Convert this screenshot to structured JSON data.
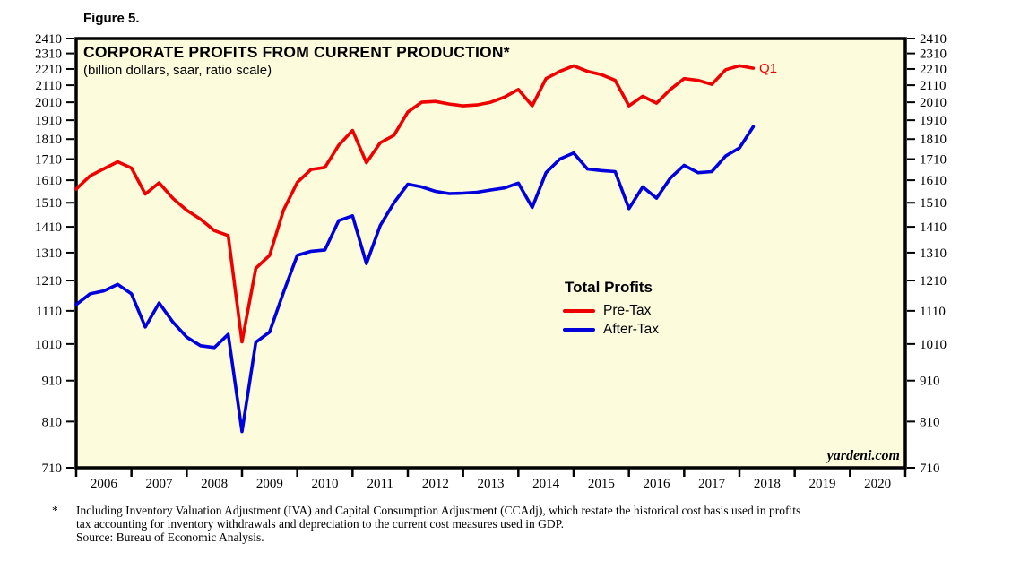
{
  "figure_label": "Figure 5.",
  "chart": {
    "title": "CORPORATE PROFITS FROM CURRENT PRODUCTION*",
    "subtitle": "(billion dollars, saar, ratio scale)",
    "legend": {
      "title": "Total Profits",
      "items": [
        {
          "label": "Pre-Tax",
          "color": "#EE0000"
        },
        {
          "label": "After-Tax",
          "color": "#0000DD"
        }
      ]
    },
    "annotation_q1": "Q1",
    "watermark": "yardeni.com",
    "colors": {
      "plot_bg": "#FCFBDC",
      "border": "#000000",
      "tick": "#000000"
    }
  },
  "chart_data": {
    "type": "line",
    "title": "CORPORATE PROFITS FROM CURRENT PRODUCTION*",
    "subtitle": "(billion dollars, saar, ratio scale)",
    "y_scale": "log",
    "ylim": [
      710,
      2410
    ],
    "y_ticks": [
      710,
      810,
      910,
      1010,
      1110,
      1210,
      1310,
      1410,
      1510,
      1610,
      1710,
      1810,
      1910,
      2010,
      2110,
      2210,
      2310,
      2410
    ],
    "x_range": [
      2006,
      2021
    ],
    "x_years": [
      2006,
      2007,
      2008,
      2009,
      2010,
      2011,
      2012,
      2013,
      2014,
      2015,
      2016,
      2017,
      2018,
      2019,
      2020
    ],
    "frequency": "quarterly",
    "first_point": "2005-Q4",
    "last_point": "2018-Q1",
    "x_start": 2006.0,
    "x_step": 0.25,
    "grid": false,
    "legend_position": "center-right",
    "series": [
      {
        "name": "Pre-Tax",
        "color": "#EE0000",
        "values": [
          1570,
          1630,
          1663,
          1697,
          1667,
          1548,
          1598,
          1529,
          1478,
          1441,
          1395,
          1375,
          1016,
          1253,
          1300,
          1478,
          1600,
          1660,
          1670,
          1779,
          1855,
          1692,
          1791,
          1830,
          1955,
          2010,
          2015,
          2000,
          1990,
          1995,
          2010,
          2040,
          2085,
          1990,
          2150,
          2195,
          2230,
          2195,
          2175,
          2140,
          1990,
          2045,
          2005,
          2085,
          2150,
          2140,
          2115,
          2205,
          2230,
          2215
        ]
      },
      {
        "name": "After-Tax",
        "color": "#0000DD",
        "values": [
          1130,
          1165,
          1175,
          1197,
          1165,
          1060,
          1135,
          1075,
          1030,
          1005,
          1000,
          1038,
          787,
          1015,
          1045,
          1170,
          1300,
          1315,
          1320,
          1435,
          1455,
          1270,
          1415,
          1510,
          1592,
          1580,
          1560,
          1550,
          1552,
          1556,
          1566,
          1575,
          1597,
          1490,
          1645,
          1710,
          1740,
          1662,
          1655,
          1650,
          1485,
          1580,
          1530,
          1620,
          1680,
          1645,
          1650,
          1725,
          1765,
          1875
        ]
      }
    ]
  },
  "footnote": {
    "marker": "*",
    "line1": "Including Inventory Valuation Adjustment (IVA) and Capital Consumption Adjustment (CCAdj), which restate the historical cost basis used in profits",
    "line2": "tax accounting for inventory withdrawals and depreciation to the current cost measures used in GDP.",
    "line3": "Source: Bureau of Economic Analysis."
  }
}
